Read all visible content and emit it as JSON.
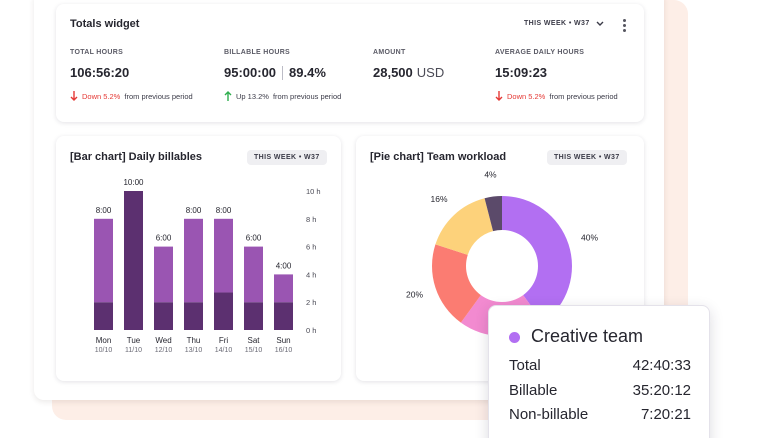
{
  "totals": {
    "title": "Totals widget",
    "period": "THIS WEEK • W37",
    "metrics": [
      {
        "label": "TOTAL HOURS",
        "value": "106:56:20",
        "change": "Down 5.2%",
        "change_rest": "from previous period",
        "direction": "down"
      },
      {
        "label": "BILLABLE HOURS",
        "value": "95:00:00",
        "value2": "89.4%",
        "change": "Up 13.2%",
        "change_rest": "from previous period",
        "direction": "up"
      },
      {
        "label": "AMOUNT",
        "value": "28,500",
        "unit": "USD"
      },
      {
        "label": "AVERAGE DAILY HOURS",
        "value": "15:09:23",
        "change": "Down 5.2%",
        "change_rest": "from previous period",
        "direction": "down"
      }
    ]
  },
  "bar_card": {
    "title": "[Bar chart] Daily billables",
    "period": "THIS WEEK • W37"
  },
  "pie_card": {
    "title": "[Pie chart] Team workload",
    "period": "THIS WEEK • W37"
  },
  "chart_data": [
    {
      "type": "bar",
      "title": "[Bar chart] Daily billables",
      "categories": [
        "Mon",
        "Tue",
        "Wed",
        "Thu",
        "Fri",
        "Sat",
        "Sun"
      ],
      "dates": [
        "10/10",
        "11/10",
        "12/10",
        "13/10",
        "14/10",
        "15/10",
        "16/10"
      ],
      "data_labels": [
        "8:00",
        "10:00",
        "6:00",
        "8:00",
        "8:00",
        "6:00",
        "4:00"
      ],
      "series": [
        {
          "values": [
            2,
            10,
            2,
            2,
            2.7,
            2,
            2
          ]
        },
        {
          "values": [
            6,
            0,
            4,
            6,
            5.3,
            4,
            2
          ]
        }
      ],
      "colors": [
        "#5c3070",
        "#9a55b2"
      ],
      "totals": [
        8,
        10,
        6,
        8,
        8,
        6,
        4
      ],
      "y_ticks": [
        "0 h",
        "2 h",
        "4 h",
        "6 h",
        "8 h",
        "10 h"
      ],
      "ylim": [
        0,
        10
      ],
      "grid": false
    },
    {
      "type": "pie",
      "title": "[Pie chart] Team workload",
      "labels": [
        "40%",
        "20%",
        "20%",
        "16%",
        "4%"
      ],
      "values": [
        40,
        20,
        20,
        16,
        4
      ],
      "colors": [
        "#b26ff2",
        "#f28ad0",
        "#fb7c72",
        "#fdd27b",
        "#5b4a6a"
      ]
    }
  ],
  "tooltip": {
    "color": "#b26ff2",
    "title": "Creative team",
    "rows": [
      {
        "label": "Total",
        "value": "42:40:33"
      },
      {
        "label": "Billable",
        "value": "35:20:12"
      },
      {
        "label": "Non-billable",
        "value": "7:20:21"
      }
    ]
  }
}
